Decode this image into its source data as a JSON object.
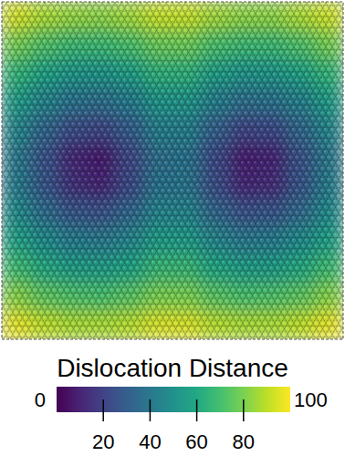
{
  "chart_data": {
    "type": "heatmap",
    "tick_labels": false,
    "cells": [
      [
        93,
        87,
        84,
        83,
        86,
        91,
        91,
        86,
        83,
        83,
        87,
        92
      ],
      [
        79,
        72,
        68,
        68,
        71,
        77,
        77,
        71,
        68,
        68,
        72,
        79
      ],
      [
        66,
        58,
        53,
        52,
        56,
        64,
        64,
        56,
        52,
        53,
        58,
        66
      ],
      [
        55,
        45,
        38,
        37,
        42,
        52,
        52,
        43,
        37,
        38,
        44,
        55
      ],
      [
        46,
        33,
        24,
        22,
        30,
        43,
        43,
        31,
        22,
        23,
        33,
        46
      ],
      [
        41,
        26,
        12,
        8,
        22,
        37,
        38,
        23,
        9,
        11,
        26,
        41
      ],
      [
        42,
        27,
        14,
        11,
        23,
        38,
        39,
        24,
        12,
        13,
        27,
        42
      ],
      [
        48,
        36,
        27,
        26,
        33,
        45,
        45,
        33,
        26,
        27,
        35,
        48
      ],
      [
        58,
        48,
        42,
        41,
        46,
        55,
        55,
        46,
        41,
        42,
        48,
        57
      ],
      [
        69,
        61,
        56,
        56,
        59,
        67,
        67,
        60,
        56,
        56,
        61,
        69
      ],
      [
        82,
        75,
        72,
        71,
        74,
        80,
        80,
        74,
        71,
        72,
        75,
        82
      ],
      [
        96,
        90,
        87,
        87,
        89,
        94,
        94,
        89,
        87,
        87,
        90,
        96
      ]
    ],
    "colorbar": {
      "label": "Dislocation Distance",
      "range": [
        0,
        100
      ],
      "ticks": [
        0,
        20,
        40,
        60,
        80,
        100
      ]
    }
  }
}
